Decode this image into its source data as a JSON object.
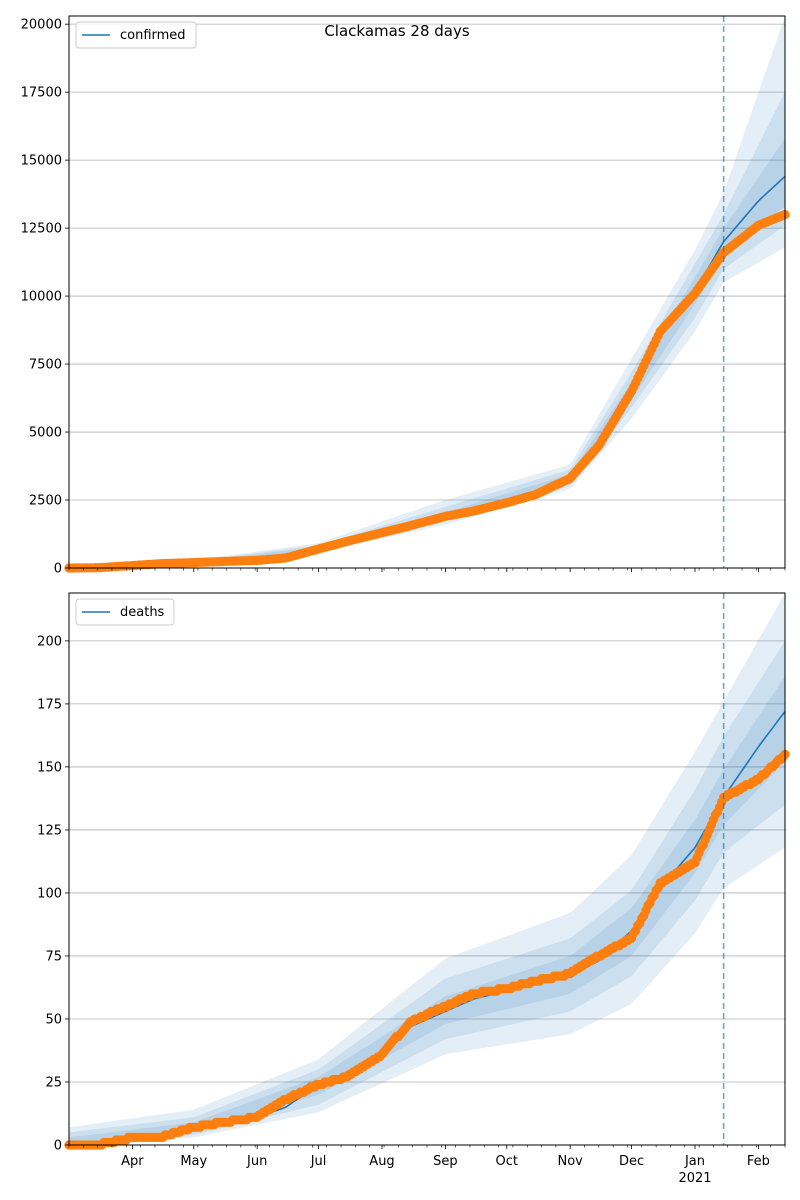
{
  "figure": {
    "title": "Clackamas 28 days"
  },
  "colors": {
    "model_line": "#1f77b4",
    "observed_points": "#ff7f0e",
    "band": "#1f77b4",
    "grid": "#b0b0b0",
    "forecast_marker": "#1f77b4"
  },
  "chart_data": [
    {
      "type": "line",
      "name": "confirmed-panel",
      "legend": [
        "confirmed"
      ],
      "legend_position": "top-left",
      "grid": "y",
      "x_range": [
        "2020-03-01",
        "2021-02-14"
      ],
      "forecast_start": "2021-01-15",
      "ylim": [
        0,
        20300
      ],
      "yticks": [
        0,
        2500,
        5000,
        7500,
        10000,
        12500,
        15000,
        17500,
        20000
      ],
      "series": [
        {
          "name": "confirmed",
          "style": "line",
          "points": [
            [
              "2020-03-01",
              0
            ],
            [
              "2020-03-15",
              10
            ],
            [
              "2020-04-01",
              100
            ],
            [
              "2020-04-15",
              160
            ],
            [
              "2020-05-01",
              200
            ],
            [
              "2020-05-15",
              240
            ],
            [
              "2020-06-01",
              290
            ],
            [
              "2020-06-15",
              380
            ],
            [
              "2020-07-01",
              720
            ],
            [
              "2020-07-15",
              980
            ],
            [
              "2020-08-01",
              1300
            ],
            [
              "2020-08-15",
              1560
            ],
            [
              "2020-09-01",
              1900
            ],
            [
              "2020-09-15",
              2100
            ],
            [
              "2020-10-01",
              2400
            ],
            [
              "2020-10-15",
              2700
            ],
            [
              "2020-11-01",
              3300
            ],
            [
              "2020-11-15",
              4600
            ],
            [
              "2020-12-01",
              6500
            ],
            [
              "2020-12-15",
              8800
            ],
            [
              "2021-01-01",
              10200
            ],
            [
              "2021-01-15",
              12000
            ],
            [
              "2021-02-01",
              13500
            ],
            [
              "2021-02-14",
              14400
            ]
          ]
        },
        {
          "name": "observed",
          "style": "points",
          "points": [
            [
              "2020-03-01",
              0
            ],
            [
              "2020-03-15",
              10
            ],
            [
              "2020-04-01",
              90
            ],
            [
              "2020-04-15",
              160
            ],
            [
              "2020-05-01",
              200
            ],
            [
              "2020-05-15",
              240
            ],
            [
              "2020-06-01",
              280
            ],
            [
              "2020-06-15",
              370
            ],
            [
              "2020-07-01",
              700
            ],
            [
              "2020-07-15",
              980
            ],
            [
              "2020-08-01",
              1300
            ],
            [
              "2020-08-15",
              1560
            ],
            [
              "2020-09-01",
              1900
            ],
            [
              "2020-09-15",
              2100
            ],
            [
              "2020-10-01",
              2400
            ],
            [
              "2020-10-15",
              2700
            ],
            [
              "2020-11-01",
              3300
            ],
            [
              "2020-11-15",
              4500
            ],
            [
              "2020-12-01",
              6500
            ],
            [
              "2020-12-15",
              8700
            ],
            [
              "2021-01-01",
              10100
            ],
            [
              "2021-01-15",
              11600
            ],
            [
              "2021-02-01",
              12600
            ],
            [
              "2021-02-14",
              13000
            ]
          ]
        }
      ],
      "bands": [
        {
          "label": "outer",
          "lower": [
            [
              "2020-03-01",
              0
            ],
            [
              "2020-05-01",
              160
            ],
            [
              "2020-07-01",
              560
            ],
            [
              "2020-09-01",
              1600
            ],
            [
              "2020-11-01",
              2900
            ],
            [
              "2020-12-01",
              5500
            ],
            [
              "2021-01-01",
              8700
            ],
            [
              "2021-01-15",
              10500
            ],
            [
              "2021-02-14",
              11800
            ]
          ],
          "upper": [
            [
              "2020-03-01",
              150
            ],
            [
              "2020-05-01",
              280
            ],
            [
              "2020-07-01",
              920
            ],
            [
              "2020-09-01",
              2500
            ],
            [
              "2020-11-01",
              3800
            ],
            [
              "2020-12-01",
              7700
            ],
            [
              "2021-01-01",
              11700
            ],
            [
              "2021-01-15",
              13800
            ],
            [
              "2021-02-14",
              20300
            ]
          ]
        },
        {
          "label": "mid",
          "lower": [
            [
              "2020-03-01",
              0
            ],
            [
              "2020-05-01",
              175
            ],
            [
              "2020-07-01",
              620
            ],
            [
              "2020-09-01",
              1720
            ],
            [
              "2020-11-01",
              3020
            ],
            [
              "2020-12-01",
              5900
            ],
            [
              "2021-01-01",
              9200
            ],
            [
              "2021-01-15",
              11000
            ],
            [
              "2021-02-14",
              12600
            ]
          ],
          "upper": [
            [
              "2020-03-01",
              100
            ],
            [
              "2020-05-01",
              250
            ],
            [
              "2020-07-01",
              840
            ],
            [
              "2020-09-01",
              2250
            ],
            [
              "2020-11-01",
              3620
            ],
            [
              "2020-12-01",
              7200
            ],
            [
              "2021-01-01",
              11200
            ],
            [
              "2021-01-15",
              13000
            ],
            [
              "2021-02-14",
              17500
            ]
          ]
        },
        {
          "label": "inner",
          "lower": [
            [
              "2020-03-01",
              0
            ],
            [
              "2020-05-01",
              185
            ],
            [
              "2020-07-01",
              670
            ],
            [
              "2020-09-01",
              1800
            ],
            [
              "2020-11-01",
              3150
            ],
            [
              "2020-12-01",
              6200
            ],
            [
              "2021-01-01",
              9700
            ],
            [
              "2021-01-15",
              11500
            ],
            [
              "2021-02-14",
              13300
            ]
          ],
          "upper": [
            [
              "2020-03-01",
              50
            ],
            [
              "2020-05-01",
              225
            ],
            [
              "2020-07-01",
              780
            ],
            [
              "2020-09-01",
              2050
            ],
            [
              "2020-11-01",
              3450
            ],
            [
              "2020-12-01",
              6850
            ],
            [
              "2021-01-01",
              10700
            ],
            [
              "2021-01-15",
              12500
            ],
            [
              "2021-02-14",
              15800
            ]
          ]
        }
      ]
    },
    {
      "type": "line",
      "name": "deaths-panel",
      "legend": [
        "deaths"
      ],
      "legend_position": "top-left",
      "grid": "y",
      "x_range": [
        "2020-03-01",
        "2021-02-14"
      ],
      "forecast_start": "2021-01-15",
      "ylim": [
        0,
        219
      ],
      "yticks": [
        0,
        25,
        50,
        75,
        100,
        125,
        150,
        175,
        200
      ],
      "series": [
        {
          "name": "deaths",
          "style": "line",
          "points": [
            [
              "2020-03-01",
              0
            ],
            [
              "2020-03-15",
              1
            ],
            [
              "2020-04-01",
              3
            ],
            [
              "2020-04-15",
              4
            ],
            [
              "2020-05-01",
              7
            ],
            [
              "2020-05-15",
              9
            ],
            [
              "2020-06-01",
              11
            ],
            [
              "2020-06-15",
              15
            ],
            [
              "2020-07-01",
              24
            ],
            [
              "2020-07-15",
              27
            ],
            [
              "2020-08-01",
              36
            ],
            [
              "2020-08-15",
              47
            ],
            [
              "2020-09-01",
              53
            ],
            [
              "2020-09-15",
              58
            ],
            [
              "2020-10-01",
              61
            ],
            [
              "2020-10-15",
              64
            ],
            [
              "2020-11-01",
              68
            ],
            [
              "2020-11-15",
              73
            ],
            [
              "2020-12-01",
              85
            ],
            [
              "2020-12-15",
              102
            ],
            [
              "2021-01-01",
              118
            ],
            [
              "2021-01-15",
              138
            ],
            [
              "2021-02-01",
              158
            ],
            [
              "2021-02-14",
              172
            ]
          ]
        },
        {
          "name": "observed",
          "style": "points",
          "points": [
            [
              "2020-03-01",
              0
            ],
            [
              "2020-03-15",
              0
            ],
            [
              "2020-04-01",
              3
            ],
            [
              "2020-04-15",
              3
            ],
            [
              "2020-05-01",
              7
            ],
            [
              "2020-05-15",
              9
            ],
            [
              "2020-06-01",
              11
            ],
            [
              "2020-06-15",
              18
            ],
            [
              "2020-07-01",
              24
            ],
            [
              "2020-07-15",
              27
            ],
            [
              "2020-08-01",
              36
            ],
            [
              "2020-08-15",
              49
            ],
            [
              "2020-09-01",
              55
            ],
            [
              "2020-09-15",
              60
            ],
            [
              "2020-10-01",
              62
            ],
            [
              "2020-10-15",
              65
            ],
            [
              "2020-11-01",
              68
            ],
            [
              "2020-11-15",
              75
            ],
            [
              "2020-12-01",
              82
            ],
            [
              "2020-12-15",
              104
            ],
            [
              "2021-01-01",
              112
            ],
            [
              "2021-01-15",
              138
            ],
            [
              "2021-02-01",
              145
            ],
            [
              "2021-02-14",
              155
            ]
          ]
        }
      ],
      "bands": [
        {
          "label": "outer",
          "lower": [
            [
              "2020-03-01",
              0
            ],
            [
              "2020-05-01",
              3
            ],
            [
              "2020-07-01",
              13
            ],
            [
              "2020-09-01",
              36
            ],
            [
              "2020-11-01",
              44
            ],
            [
              "2020-12-01",
              56
            ],
            [
              "2021-01-01",
              84
            ],
            [
              "2021-01-15",
              102
            ],
            [
              "2021-02-14",
              118
            ]
          ],
          "upper": [
            [
              "2020-03-01",
              7
            ],
            [
              "2020-05-01",
              14
            ],
            [
              "2020-07-01",
              34
            ],
            [
              "2020-09-01",
              74
            ],
            [
              "2020-11-01",
              92
            ],
            [
              "2020-12-01",
              115
            ],
            [
              "2021-01-01",
              156
            ],
            [
              "2021-01-15",
              176
            ],
            [
              "2021-02-14",
              219
            ]
          ]
        },
        {
          "label": "mid",
          "lower": [
            [
              "2020-03-01",
              0
            ],
            [
              "2020-05-01",
              4
            ],
            [
              "2020-07-01",
              16
            ],
            [
              "2020-09-01",
              42
            ],
            [
              "2020-11-01",
              53
            ],
            [
              "2020-12-01",
              67
            ],
            [
              "2021-01-01",
              97
            ],
            [
              "2021-01-15",
              116
            ],
            [
              "2021-02-14",
              135
            ]
          ],
          "upper": [
            [
              "2020-03-01",
              5
            ],
            [
              "2020-05-01",
              11
            ],
            [
              "2020-07-01",
              30
            ],
            [
              "2020-09-01",
              66
            ],
            [
              "2020-11-01",
              82
            ],
            [
              "2020-12-01",
              101
            ],
            [
              "2021-01-01",
              141
            ],
            [
              "2021-01-15",
              162
            ],
            [
              "2021-02-14",
              200
            ]
          ]
        },
        {
          "label": "inner",
          "lower": [
            [
              "2020-03-01",
              0
            ],
            [
              "2020-05-01",
              5
            ],
            [
              "2020-07-01",
              20
            ],
            [
              "2020-09-01",
              48
            ],
            [
              "2020-11-01",
              60
            ],
            [
              "2020-12-01",
              75
            ],
            [
              "2021-01-01",
              108
            ],
            [
              "2021-01-15",
              127
            ],
            [
              "2021-02-14",
              152
            ]
          ],
          "upper": [
            [
              "2020-03-01",
              3
            ],
            [
              "2020-05-01",
              9
            ],
            [
              "2020-07-01",
              27
            ],
            [
              "2020-09-01",
              59
            ],
            [
              "2020-11-01",
              75
            ],
            [
              "2020-12-01",
              94
            ],
            [
              "2021-01-01",
              129
            ],
            [
              "2021-01-15",
              149
            ],
            [
              "2021-02-14",
              186
            ]
          ]
        }
      ]
    }
  ],
  "x_axis": {
    "month_ticks": [
      {
        "date": "2020-04-01",
        "label": "Apr"
      },
      {
        "date": "2020-05-01",
        "label": "May"
      },
      {
        "date": "2020-06-01",
        "label": "Jun"
      },
      {
        "date": "2020-07-01",
        "label": "Jul"
      },
      {
        "date": "2020-08-01",
        "label": "Aug"
      },
      {
        "date": "2020-09-01",
        "label": "Sep"
      },
      {
        "date": "2020-10-01",
        "label": "Oct"
      },
      {
        "date": "2020-11-01",
        "label": "Nov"
      },
      {
        "date": "2020-12-01",
        "label": "Dec"
      },
      {
        "date": "2021-01-01",
        "label": "Jan"
      },
      {
        "date": "2021-02-01",
        "label": "Feb"
      }
    ],
    "year_label": {
      "date": "2021-01-01",
      "label": "2021"
    }
  }
}
